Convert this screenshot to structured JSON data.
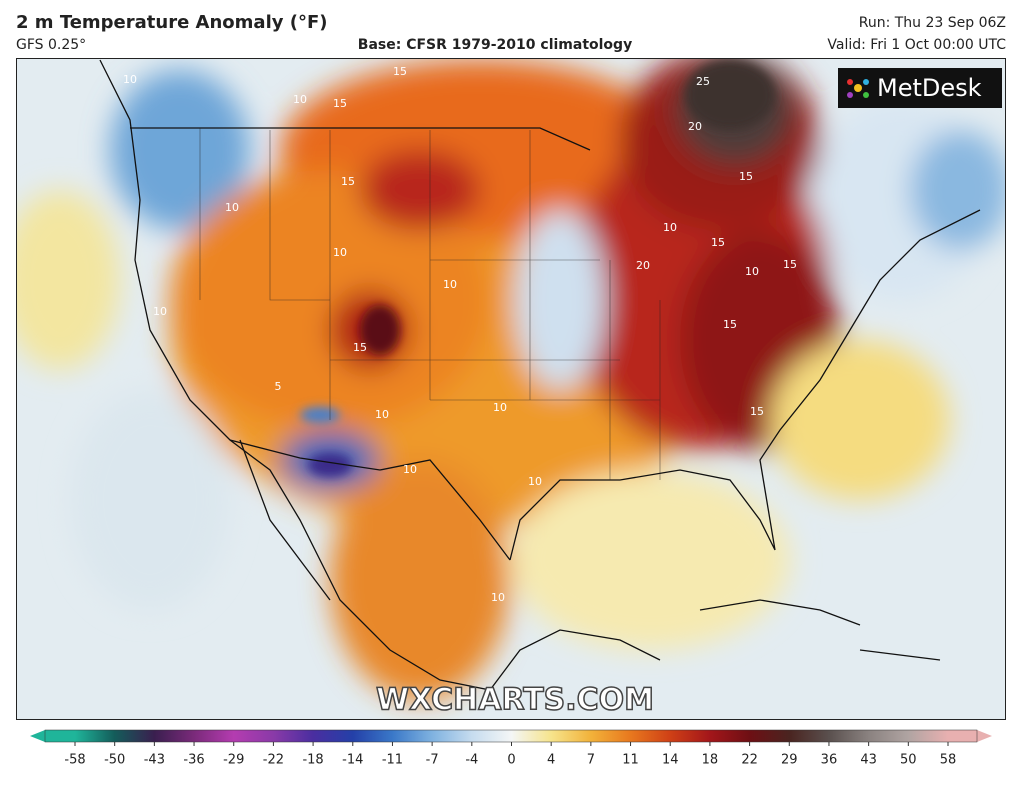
{
  "header": {
    "title": "2 m Temperature Anomaly (°F)",
    "model": "GFS 0.25°",
    "base": "Base: CFSR 1979-2010 climatology",
    "run": "Run: Thu 23 Sep 06Z",
    "valid": "Valid: Fri 1 Oct 00:00 UTC"
  },
  "logo": "MetDesk",
  "watermark": "WXCHARTS.COM",
  "contour_labels": [
    "10",
    "15",
    "10",
    "15",
    "25",
    "20",
    "15",
    "15",
    "10",
    "10",
    "15",
    "20",
    "10",
    "15",
    "15",
    "10",
    "10",
    "15",
    "10",
    "10",
    "15",
    "10",
    "10",
    "10",
    "5",
    "10"
  ],
  "legend": {
    "ticks": [
      -58,
      -50,
      -43,
      -36,
      -29,
      -22,
      -18,
      -14,
      -11,
      -7,
      -4,
      0,
      4,
      7,
      11,
      14,
      18,
      22,
      29,
      36,
      43,
      50,
      58
    ],
    "colors": [
      "#1fb59a",
      "#145c5a",
      "#3a1f4f",
      "#7a2a7a",
      "#b43cb0",
      "#8a3aa8",
      "#4a2ea0",
      "#2440a8",
      "#3a78c8",
      "#7fb2e0",
      "#c6dcef",
      "#f4f6f6",
      "#f6e48c",
      "#f2b23a",
      "#e8781e",
      "#cf4016",
      "#a3161a",
      "#6e0f14",
      "#4a2420",
      "#5a504e",
      "#8a8280",
      "#b0a4a2",
      "#e8b0b0"
    ]
  }
}
